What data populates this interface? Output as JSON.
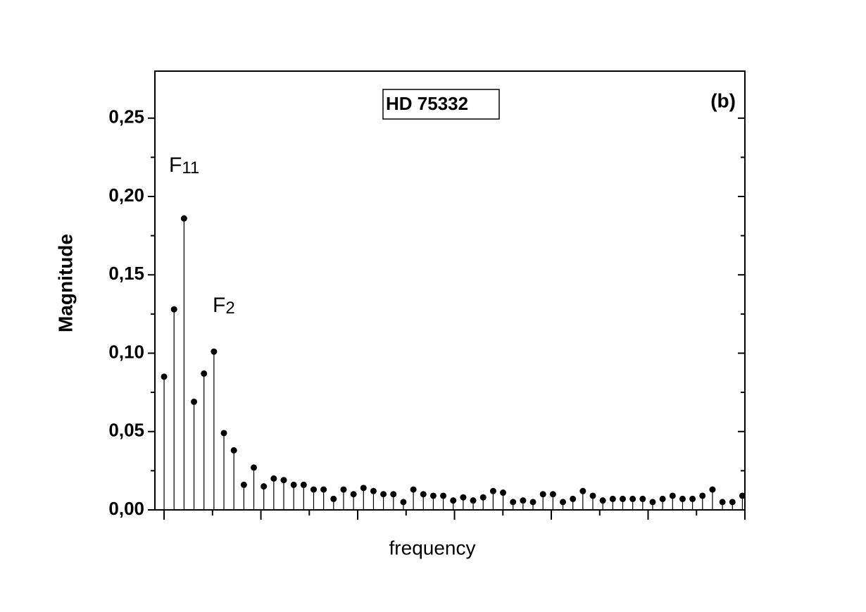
{
  "chart_data": {
    "type": "stem",
    "title": "HD 75332",
    "panel_label": "(b)",
    "x_label": "frequency",
    "y_label": "Magnitude",
    "annotations": [
      {
        "text": "F",
        "sub": "11"
      },
      {
        "text": "F",
        "sub": "2"
      }
    ],
    "color": "#000000",
    "x": [
      0,
      0.103,
      0.206,
      0.309,
      0.412,
      0.515,
      0.618,
      0.721,
      0.824,
      0.927,
      1.03,
      1.133,
      1.236,
      1.339,
      1.442,
      1.545,
      1.648,
      1.751,
      1.854,
      1.957,
      2.06,
      2.163,
      2.266,
      2.369,
      2.472,
      2.575,
      2.678,
      2.781,
      2.884,
      2.987,
      3.09,
      3.193,
      3.296,
      3.399,
      3.502,
      3.605,
      3.708,
      3.811,
      3.914,
      4.017,
      4.12,
      4.223,
      4.326,
      4.429,
      4.532,
      4.635,
      4.738,
      4.841,
      4.944,
      5.047,
      5.15,
      5.253,
      5.356,
      5.459,
      5.562,
      5.665,
      5.768,
      5.871,
      5.974
    ],
    "values": [
      0.085,
      0.128,
      0.186,
      0.069,
      0.087,
      0.101,
      0.049,
      0.038,
      0.016,
      0.027,
      0.015,
      0.02,
      0.019,
      0.016,
      0.016,
      0.013,
      0.013,
      0.007,
      0.013,
      0.01,
      0.014,
      0.012,
      0.01,
      0.01,
      0.005,
      0.013,
      0.01,
      0.009,
      0.009,
      0.006,
      0.008,
      0.006,
      0.008,
      0.012,
      0.011,
      0.005,
      0.006,
      0.005,
      0.01,
      0.01,
      0.005,
      0.007,
      0.012,
      0.009,
      0.006,
      0.007,
      0.007,
      0.007,
      0.007,
      0.005,
      0.007,
      0.009,
      0.007,
      0.007,
      0.009,
      0.013,
      0.005,
      0.005,
      0.009
    ],
    "xlim": [
      -0.095,
      6
    ],
    "xticks": [
      0,
      1,
      2,
      3,
      4,
      5,
      6
    ],
    "ylim": [
      0,
      0.28
    ],
    "yticks": [
      {
        "value": 0,
        "label": "0,00"
      },
      {
        "value": 0.05,
        "label": "0,05"
      },
      {
        "value": 0.1,
        "label": "0,10"
      },
      {
        "value": 0.15,
        "label": "0,15"
      },
      {
        "value": 0.2,
        "label": "0,20"
      },
      {
        "value": 0.25,
        "label": "0,25"
      }
    ]
  }
}
